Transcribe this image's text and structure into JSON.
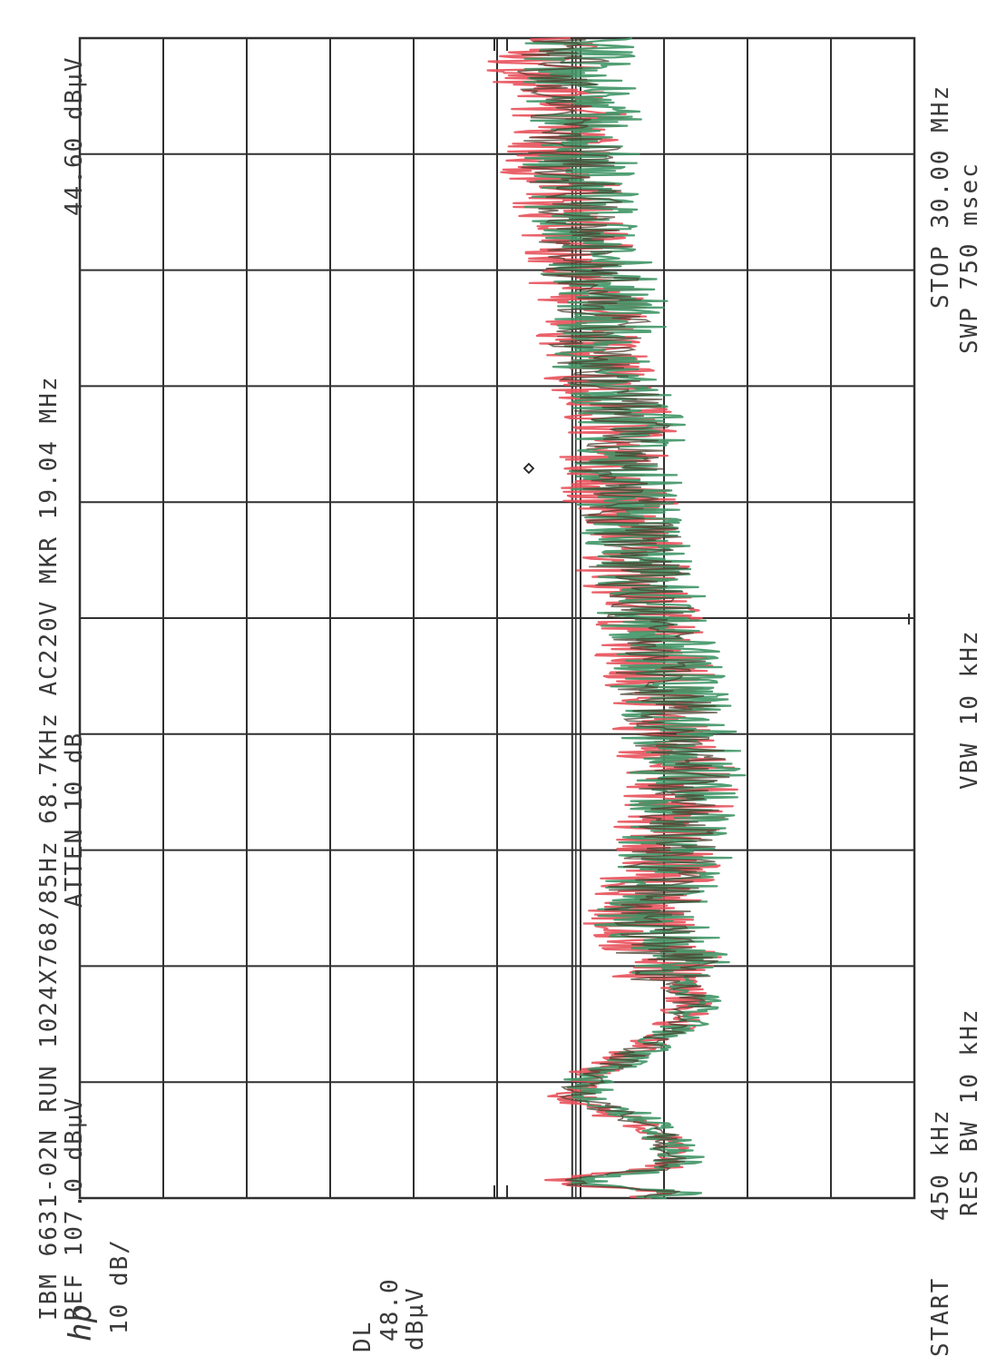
{
  "header": {
    "line1": "IBM 6631-02N RUN 1024X768/85Hz 68.7KHz AC220V MKR 19.04 MHz",
    "marker_level": "44.60 dBµV",
    "ref": "REF 107.0 dBµV",
    "atten": "ATTEN 10 dB"
  },
  "side": {
    "logo": "hp",
    "scale": "10 dB/",
    "dl_label": "DL",
    "dl_value": "48.0",
    "dl_unit": "dBµV"
  },
  "footer": {
    "start_word": "START",
    "start": "450 kHz",
    "res_bw": "RES BW 10 kHz",
    "vbw": "VBW 10 kHz",
    "stop": "STOP 30.00 MHz",
    "sweep": "SWP 750 msec"
  },
  "colors": {
    "grid": "#303030",
    "trace_red": "#e8505a",
    "trace_green": "#3f9566",
    "trace_dark": "#4a3f2f"
  },
  "chart_data": {
    "type": "line",
    "title": "IBM 6631-02N RUN 1024X768/85Hz 68.7KHz AC220V",
    "xlabel": "",
    "ylabel": "",
    "orientation": "rotated-90-ccw",
    "x_unit": "MHz",
    "y_unit": "dBµV",
    "xlim": [
      0.45,
      30.0
    ],
    "ylim": [
      7.0,
      107.0
    ],
    "grid": true,
    "reference_level": 107.0,
    "display_line": 48.0,
    "marker": {
      "x": 19.04,
      "y": 44.6
    },
    "series": [
      {
        "color": "red",
        "x": [
          0.45,
          0.6,
          0.8,
          1.0,
          1.2,
          1.5,
          1.8,
          2.1,
          2.5,
          3.0,
          3.5,
          4.0,
          4.5,
          5.0,
          5.5,
          6.0,
          6.5,
          7.0,
          7.5,
          8.0,
          9.0,
          10.0,
          11.0,
          12.0,
          13.0,
          14.0,
          15.0,
          16.0,
          17.0,
          18.0,
          19.04,
          20.0,
          21.0,
          22.0,
          23.0,
          24.0,
          25.0,
          26.0,
          27.0,
          28.0,
          29.0,
          30.0
        ],
        "values": [
          40,
          36,
          50,
          48,
          38,
          36,
          37,
          38,
          42,
          48,
          47,
          42,
          38,
          35,
          34,
          36,
          37,
          38,
          40,
          39,
          37,
          36,
          35,
          36,
          37,
          38,
          39,
          40,
          41,
          42,
          43,
          42,
          44,
          46,
          45,
          47,
          48,
          49,
          50,
          48,
          52,
          50
        ]
      },
      {
        "color": "green",
        "x": [
          0.45,
          0.6,
          0.8,
          1.0,
          1.2,
          1.5,
          1.8,
          2.1,
          2.5,
          3.0,
          3.5,
          4.0,
          4.5,
          5.0,
          5.5,
          6.0,
          6.5,
          7.0,
          7.5,
          8.0,
          9.0,
          10.0,
          11.0,
          12.0,
          13.0,
          14.0,
          15.0,
          16.0,
          17.0,
          18.0,
          19.04,
          20.0,
          21.0,
          22.0,
          23.0,
          24.0,
          25.0,
          26.0,
          27.0,
          28.0,
          29.0,
          30.0
        ],
        "values": [
          38,
          35,
          46,
          45,
          36,
          35,
          36,
          37,
          40,
          46,
          46,
          41,
          37,
          34,
          33,
          35,
          36,
          37,
          39,
          38,
          36,
          35,
          34,
          35,
          36,
          37,
          38,
          39,
          40,
          41,
          42,
          41,
          43,
          44,
          43,
          45,
          46,
          47,
          47,
          46,
          48,
          47
        ]
      }
    ]
  }
}
